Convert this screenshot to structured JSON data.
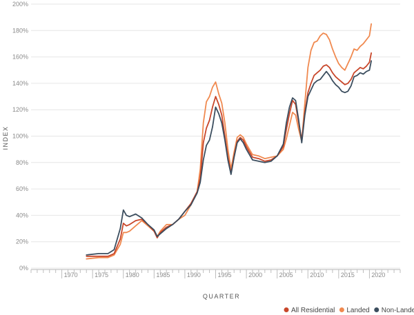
{
  "chart_data": {
    "type": "line",
    "xlabel": "QUARTER",
    "ylabel": "INDEX",
    "xlim": [
      1965,
      2025
    ],
    "ylim": [
      0,
      200
    ],
    "x_ticks": [
      1970,
      1975,
      1980,
      1985,
      1990,
      1995,
      2000,
      2005,
      2010,
      2015,
      2020
    ],
    "x_tick_labels": [
      "1970",
      "1975",
      "1980",
      "1985",
      "1990",
      "1995",
      "2000",
      "2005",
      "2010",
      "2015",
      "2020"
    ],
    "y_ticks": [
      0,
      20,
      40,
      60,
      80,
      100,
      120,
      140,
      160,
      180,
      200
    ],
    "y_tick_labels": [
      "0%",
      "20%",
      "40%",
      "60%",
      "80%",
      "100%",
      "120%",
      "140%",
      "160%",
      "180%",
      "200%"
    ],
    "grid": true,
    "legend_position": "bottom-right",
    "series": [
      {
        "name": "All Residential",
        "color": "#c8462a",
        "points": [
          [
            1974.0,
            9
          ],
          [
            1976.0,
            9
          ],
          [
            1977.5,
            9
          ],
          [
            1978.5,
            11
          ],
          [
            1979.5,
            22
          ],
          [
            1980.0,
            34
          ],
          [
            1980.5,
            32
          ],
          [
            1981.0,
            33
          ],
          [
            1982.0,
            36
          ],
          [
            1983.0,
            37
          ],
          [
            1984.0,
            33
          ],
          [
            1985.0,
            28
          ],
          [
            1985.5,
            23
          ],
          [
            1986.0,
            27
          ],
          [
            1987.0,
            31
          ],
          [
            1988.0,
            33
          ],
          [
            1989.0,
            37
          ],
          [
            1990.0,
            43
          ],
          [
            1991.0,
            49
          ],
          [
            1992.0,
            58
          ],
          [
            1992.5,
            68
          ],
          [
            1993.0,
            95
          ],
          [
            1993.5,
            106
          ],
          [
            1994.0,
            112
          ],
          [
            1994.5,
            122
          ],
          [
            1995.0,
            130
          ],
          [
            1995.5,
            124
          ],
          [
            1996.0,
            116
          ],
          [
            1996.5,
            100
          ],
          [
            1997.0,
            84
          ],
          [
            1997.5,
            72
          ],
          [
            1998.0,
            85
          ],
          [
            1998.5,
            96
          ],
          [
            1999.0,
            99
          ],
          [
            1999.5,
            97
          ],
          [
            2000.0,
            92
          ],
          [
            2000.5,
            88
          ],
          [
            2001.0,
            84
          ],
          [
            2002.0,
            83
          ],
          [
            2003.0,
            81
          ],
          [
            2004.0,
            82
          ],
          [
            2005.0,
            85
          ],
          [
            2006.0,
            92
          ],
          [
            2006.5,
            105
          ],
          [
            2007.0,
            117
          ],
          [
            2007.5,
            127
          ],
          [
            2008.0,
            124
          ],
          [
            2008.5,
            110
          ],
          [
            2009.0,
            97
          ],
          [
            2009.5,
            118
          ],
          [
            2010.0,
            133
          ],
          [
            2010.5,
            140
          ],
          [
            2011.0,
            146
          ],
          [
            2011.5,
            148
          ],
          [
            2012.0,
            150
          ],
          [
            2012.5,
            153
          ],
          [
            2013.0,
            154
          ],
          [
            2013.5,
            152
          ],
          [
            2014.0,
            148
          ],
          [
            2014.5,
            145
          ],
          [
            2015.0,
            143
          ],
          [
            2015.5,
            141
          ],
          [
            2016.0,
            139
          ],
          [
            2016.5,
            140
          ],
          [
            2017.0,
            143
          ],
          [
            2017.5,
            148
          ],
          [
            2018.0,
            150
          ],
          [
            2018.5,
            152
          ],
          [
            2019.0,
            151
          ],
          [
            2019.5,
            153
          ],
          [
            2020.0,
            156
          ],
          [
            2020.3,
            163
          ]
        ]
      },
      {
        "name": "Landed",
        "color": "#f0894f",
        "points": [
          [
            1974.0,
            7
          ],
          [
            1976.0,
            8
          ],
          [
            1977.5,
            8
          ],
          [
            1978.5,
            10
          ],
          [
            1979.5,
            18
          ],
          [
            1980.0,
            27
          ],
          [
            1980.5,
            27
          ],
          [
            1981.0,
            28
          ],
          [
            1982.0,
            32
          ],
          [
            1983.0,
            36
          ],
          [
            1984.0,
            32
          ],
          [
            1985.0,
            28
          ],
          [
            1985.5,
            24
          ],
          [
            1986.0,
            28
          ],
          [
            1987.0,
            33
          ],
          [
            1988.0,
            33
          ],
          [
            1989.0,
            37
          ],
          [
            1990.0,
            40
          ],
          [
            1991.0,
            48
          ],
          [
            1992.0,
            58
          ],
          [
            1992.5,
            75
          ],
          [
            1993.0,
            110
          ],
          [
            1993.5,
            126
          ],
          [
            1994.0,
            130
          ],
          [
            1994.5,
            137
          ],
          [
            1995.0,
            141
          ],
          [
            1995.5,
            132
          ],
          [
            1996.0,
            125
          ],
          [
            1996.5,
            110
          ],
          [
            1997.0,
            90
          ],
          [
            1997.5,
            75
          ],
          [
            1998.0,
            88
          ],
          [
            1998.5,
            99
          ],
          [
            1999.0,
            101
          ],
          [
            1999.5,
            99
          ],
          [
            2000.0,
            94
          ],
          [
            2000.5,
            90
          ],
          [
            2001.0,
            86
          ],
          [
            2002.0,
            85
          ],
          [
            2003.0,
            83
          ],
          [
            2004.0,
            84
          ],
          [
            2005.0,
            85
          ],
          [
            2006.0,
            90
          ],
          [
            2006.5,
            98
          ],
          [
            2007.0,
            108
          ],
          [
            2007.5,
            118
          ],
          [
            2008.0,
            116
          ],
          [
            2008.5,
            105
          ],
          [
            2009.0,
            96
          ],
          [
            2009.5,
            125
          ],
          [
            2010.0,
            152
          ],
          [
            2010.5,
            165
          ],
          [
            2011.0,
            171
          ],
          [
            2011.5,
            172
          ],
          [
            2012.0,
            176
          ],
          [
            2012.5,
            178
          ],
          [
            2013.0,
            177
          ],
          [
            2013.5,
            173
          ],
          [
            2014.0,
            166
          ],
          [
            2014.5,
            160
          ],
          [
            2015.0,
            155
          ],
          [
            2015.5,
            152
          ],
          [
            2016.0,
            150
          ],
          [
            2016.5,
            155
          ],
          [
            2017.0,
            160
          ],
          [
            2017.5,
            166
          ],
          [
            2018.0,
            165
          ],
          [
            2018.5,
            168
          ],
          [
            2019.0,
            170
          ],
          [
            2019.5,
            173
          ],
          [
            2020.0,
            176
          ],
          [
            2020.3,
            185
          ]
        ]
      },
      {
        "name": "Non-Landed",
        "color": "#3b4d5e",
        "points": [
          [
            1974.0,
            10
          ],
          [
            1976.0,
            11
          ],
          [
            1977.5,
            11
          ],
          [
            1978.5,
            14
          ],
          [
            1979.5,
            30
          ],
          [
            1980.0,
            44
          ],
          [
            1980.5,
            40
          ],
          [
            1981.0,
            39
          ],
          [
            1982.0,
            41
          ],
          [
            1983.0,
            38
          ],
          [
            1984.0,
            33
          ],
          [
            1985.0,
            29
          ],
          [
            1985.5,
            24
          ],
          [
            1986.0,
            26
          ],
          [
            1987.0,
            30
          ],
          [
            1988.0,
            33
          ],
          [
            1989.0,
            37
          ],
          [
            1990.0,
            43
          ],
          [
            1991.0,
            48
          ],
          [
            1992.0,
            57
          ],
          [
            1992.5,
            65
          ],
          [
            1993.0,
            82
          ],
          [
            1993.5,
            93
          ],
          [
            1994.0,
            97
          ],
          [
            1994.5,
            107
          ],
          [
            1995.0,
            122
          ],
          [
            1995.5,
            117
          ],
          [
            1996.0,
            110
          ],
          [
            1996.5,
            97
          ],
          [
            1997.0,
            82
          ],
          [
            1997.5,
            71
          ],
          [
            1998.0,
            84
          ],
          [
            1998.5,
            95
          ],
          [
            1999.0,
            98
          ],
          [
            1999.5,
            95
          ],
          [
            2000.0,
            90
          ],
          [
            2000.5,
            86
          ],
          [
            2001.0,
            82
          ],
          [
            2002.0,
            81
          ],
          [
            2003.0,
            80
          ],
          [
            2004.0,
            81
          ],
          [
            2005.0,
            85
          ],
          [
            2006.0,
            94
          ],
          [
            2006.5,
            110
          ],
          [
            2007.0,
            122
          ],
          [
            2007.5,
            129
          ],
          [
            2008.0,
            127
          ],
          [
            2008.5,
            112
          ],
          [
            2009.0,
            95
          ],
          [
            2009.5,
            116
          ],
          [
            2010.0,
            130
          ],
          [
            2010.5,
            135
          ],
          [
            2011.0,
            140
          ],
          [
            2011.5,
            142
          ],
          [
            2012.0,
            143
          ],
          [
            2012.5,
            146
          ],
          [
            2013.0,
            149
          ],
          [
            2013.5,
            146
          ],
          [
            2014.0,
            142
          ],
          [
            2014.5,
            139
          ],
          [
            2015.0,
            137
          ],
          [
            2015.5,
            134
          ],
          [
            2016.0,
            133
          ],
          [
            2016.5,
            134
          ],
          [
            2017.0,
            138
          ],
          [
            2017.5,
            145
          ],
          [
            2018.0,
            146
          ],
          [
            2018.5,
            148
          ],
          [
            2019.0,
            147
          ],
          [
            2019.5,
            149
          ],
          [
            2020.0,
            150
          ],
          [
            2020.3,
            157
          ]
        ]
      }
    ]
  }
}
